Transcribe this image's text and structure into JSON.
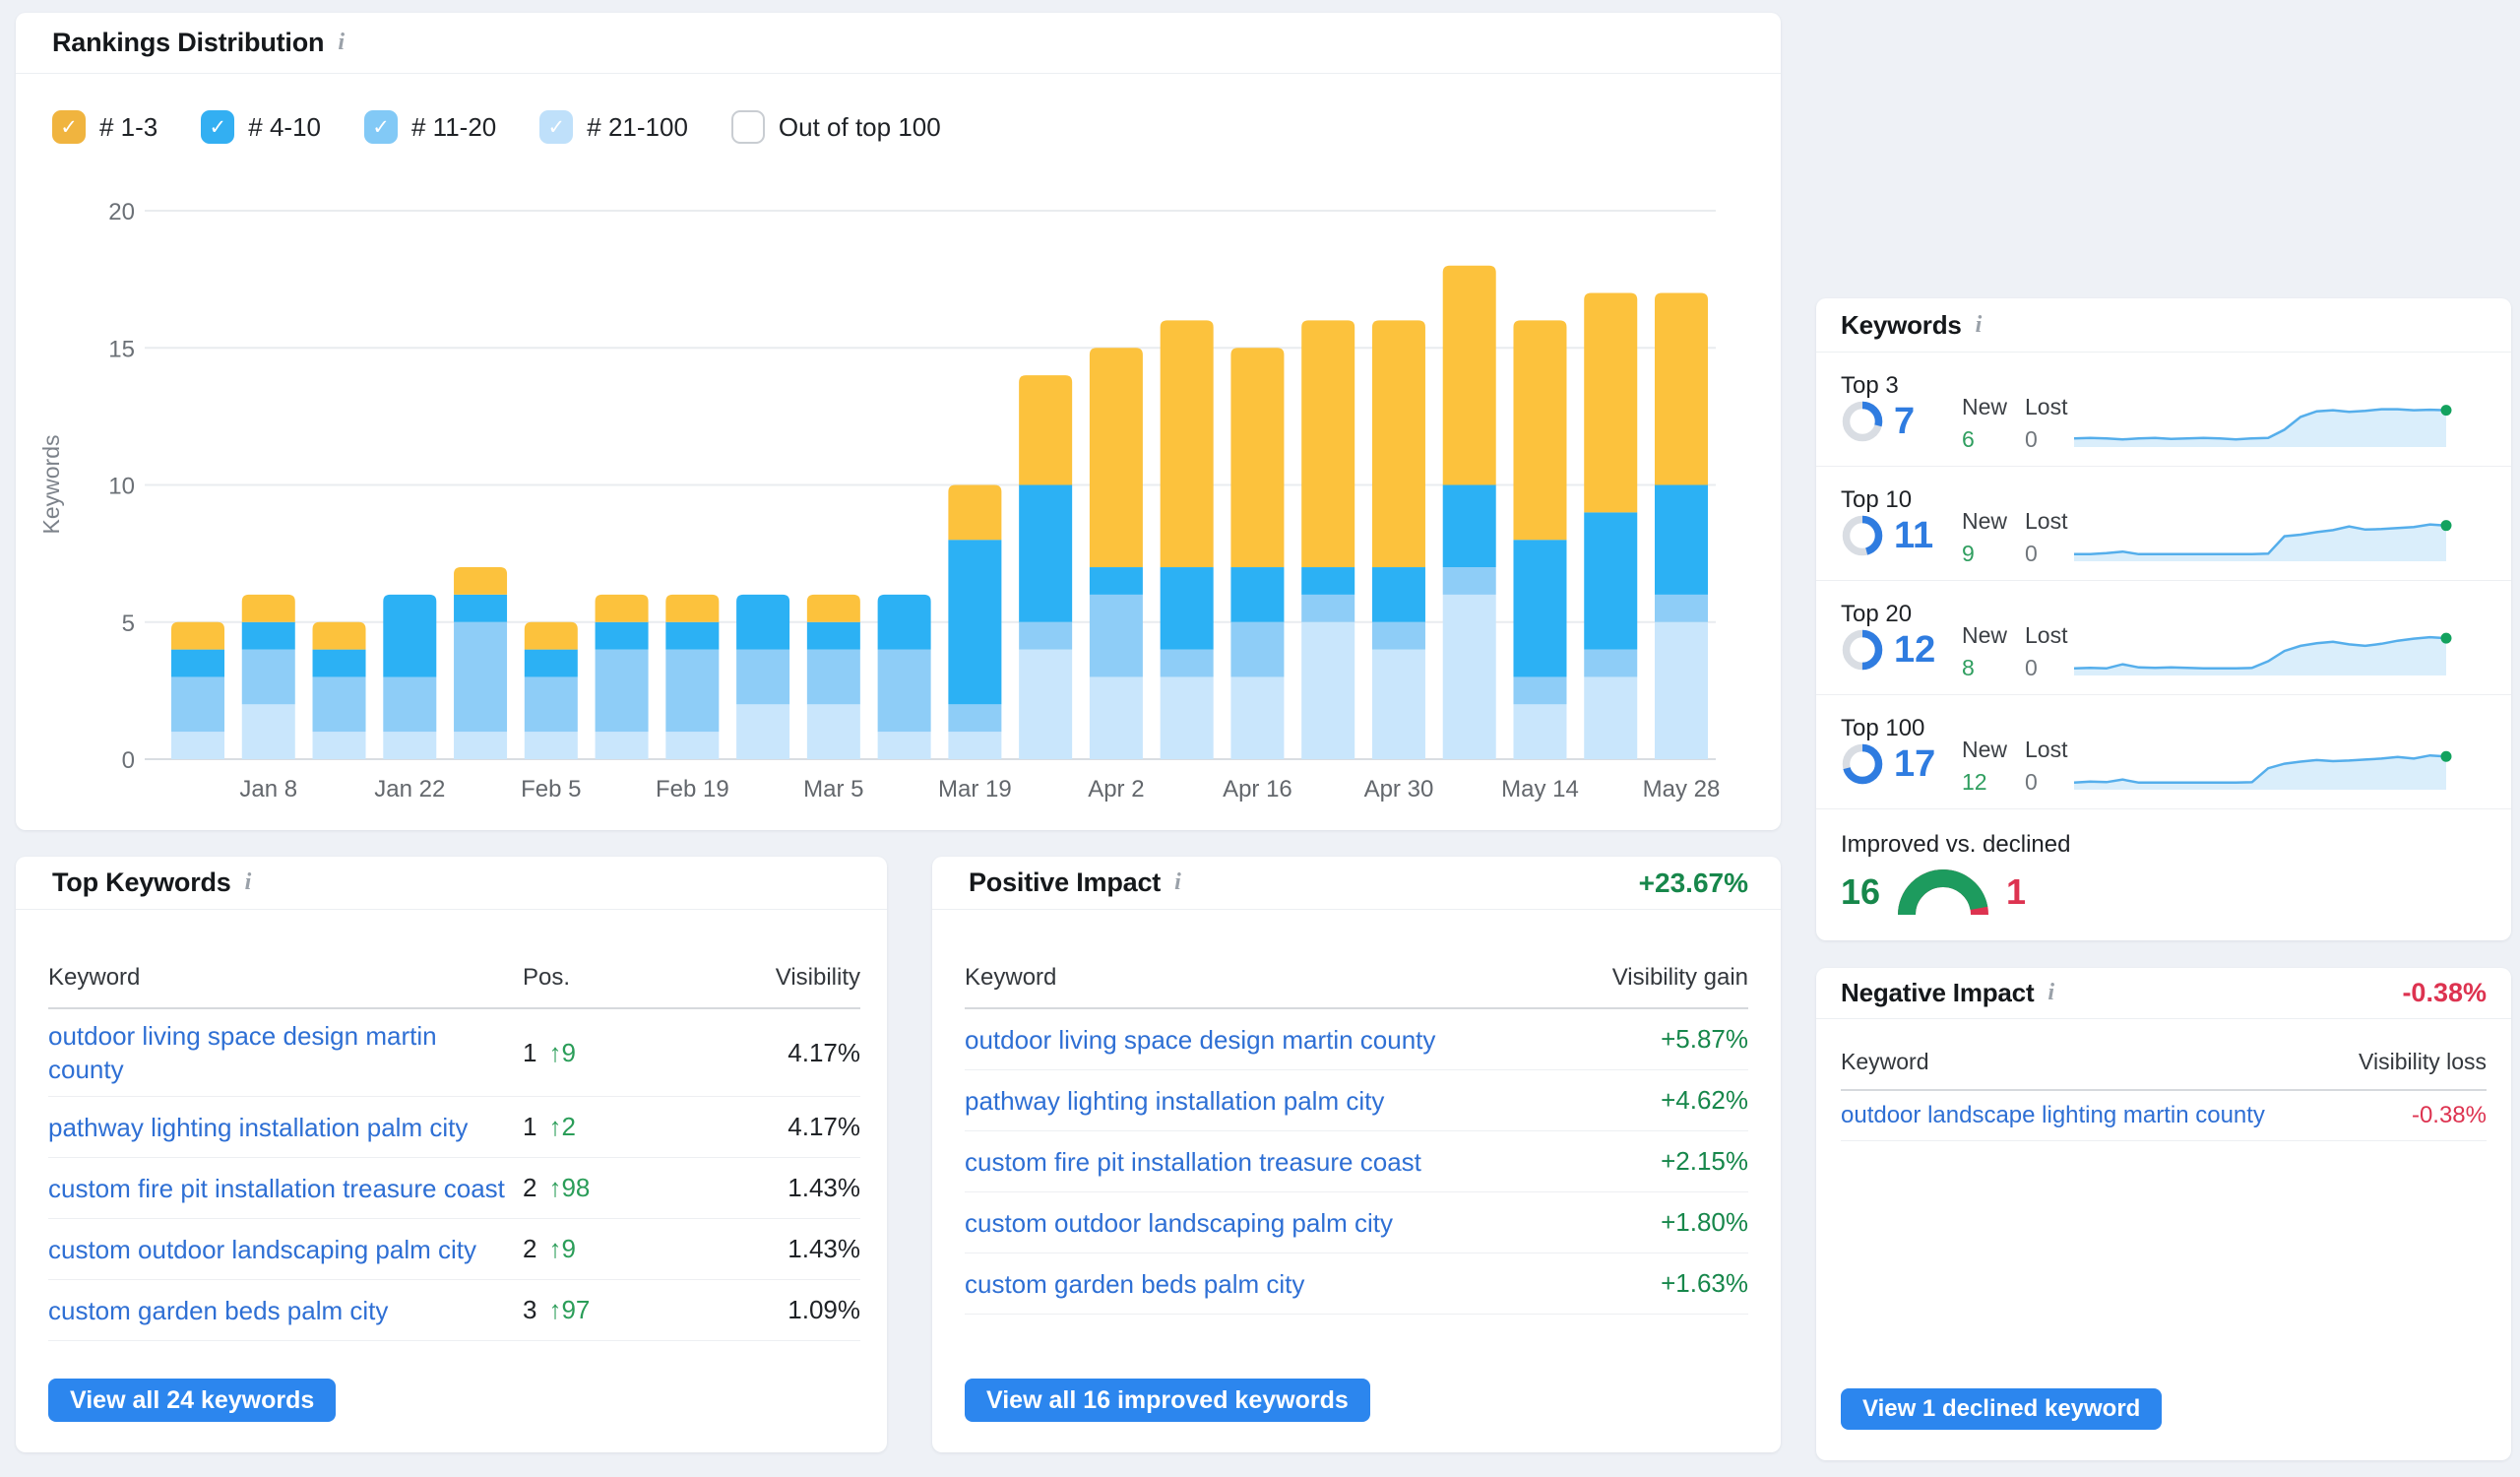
{
  "page_bg": "#eef1f6",
  "rankings": {
    "title": "Rankings Distribution",
    "legend": [
      {
        "label": "# 1-3",
        "color": "#f0b43f",
        "checked": true
      },
      {
        "label": "# 4-10",
        "color": "#33aff2",
        "checked": true
      },
      {
        "label": "# 11-20",
        "color": "#82c9f6",
        "checked": true
      },
      {
        "label": "# 21-100",
        "color": "#bfe0fa",
        "checked": true
      },
      {
        "label": "Out of top 100",
        "color": "",
        "checked": false
      }
    ],
    "chart_data": {
      "type": "bar",
      "stacked": true,
      "ylabel": "Keywords",
      "ylim": [
        0,
        20
      ],
      "yticks": [
        0,
        5,
        10,
        15,
        20
      ],
      "x_tick_labels": [
        "Jan 8",
        "Jan 22",
        "Feb 5",
        "Feb 19",
        "Mar 5",
        "Mar 19",
        "Apr 2",
        "Apr 16",
        "Apr 30",
        "May 14",
        "May 28"
      ],
      "x_tick_start_index": 1,
      "x_tick_every": 2,
      "grid": true,
      "series": [
        {
          "name": "# 21-100",
          "color": "#c9e6fc",
          "values": [
            1,
            2,
            1,
            1,
            1,
            1,
            1,
            1,
            2,
            2,
            1,
            1,
            4,
            3,
            3,
            3,
            5,
            4,
            6,
            2,
            3,
            5
          ]
        },
        {
          "name": "# 11-20",
          "color": "#8ecdf7",
          "values": [
            2,
            2,
            2,
            2,
            4,
            2,
            3,
            3,
            2,
            2,
            3,
            1,
            1,
            3,
            1,
            2,
            1,
            1,
            1,
            1,
            1,
            1
          ]
        },
        {
          "name": "# 4-10",
          "color": "#2cb1f4",
          "values": [
            1,
            1,
            1,
            3,
            1,
            1,
            1,
            1,
            2,
            1,
            2,
            6,
            5,
            1,
            3,
            2,
            1,
            2,
            3,
            5,
            5,
            4
          ]
        },
        {
          "name": "# 1-3",
          "color": "#fcc23d",
          "values": [
            1,
            1,
            1,
            0,
            1,
            1,
            1,
            1,
            0,
            1,
            0,
            2,
            4,
            8,
            9,
            8,
            9,
            9,
            8,
            8,
            8,
            7
          ]
        }
      ]
    }
  },
  "top_keywords": {
    "title": "Top Keywords",
    "columns": [
      "Keyword",
      "Pos.",
      "Visibility"
    ],
    "rows": [
      {
        "keyword": "outdoor living space design martin county",
        "pos": "1",
        "delta": "9",
        "visibility": "4.17%"
      },
      {
        "keyword": "pathway lighting installation palm city",
        "pos": "1",
        "delta": "2",
        "visibility": "4.17%"
      },
      {
        "keyword": "custom fire pit installation treasure coast",
        "pos": "2",
        "delta": "98",
        "visibility": "1.43%"
      },
      {
        "keyword": "custom outdoor landscaping palm city",
        "pos": "2",
        "delta": "9",
        "visibility": "1.43%"
      },
      {
        "keyword": "custom garden beds palm city",
        "pos": "3",
        "delta": "97",
        "visibility": "1.09%"
      }
    ],
    "button": "View all 24 keywords"
  },
  "positive_impact": {
    "title": "Positive Impact",
    "total": "+23.67%",
    "columns": [
      "Keyword",
      "Visibility gain"
    ],
    "rows": [
      {
        "keyword": "outdoor living space design martin county",
        "gain": "+5.87%"
      },
      {
        "keyword": "pathway lighting installation palm city",
        "gain": "+4.62%"
      },
      {
        "keyword": "custom fire pit installation treasure coast",
        "gain": "+2.15%"
      },
      {
        "keyword": "custom outdoor landscaping palm city",
        "gain": "+1.80%"
      },
      {
        "keyword": "custom garden beds palm city",
        "gain": "+1.63%"
      }
    ],
    "button": "View all 16 improved keywords"
  },
  "keywords_summary": {
    "title": "Keywords",
    "total_keywords": 24,
    "new_header": "New",
    "lost_header": "Lost",
    "rows": [
      {
        "label": "Top 3",
        "count": 7,
        "new": 6,
        "lost": 0,
        "spark": [
          0.13,
          0.14,
          0.13,
          0.11,
          0.13,
          0.14,
          0.12,
          0.13,
          0.14,
          0.13,
          0.11,
          0.13,
          0.14,
          0.3,
          0.55,
          0.66,
          0.68,
          0.65,
          0.67,
          0.7,
          0.7,
          0.68,
          0.69,
          0.68
        ]
      },
      {
        "label": "Top 10",
        "count": 11,
        "new": 9,
        "lost": 0,
        "spark": [
          0.1,
          0.1,
          0.12,
          0.15,
          0.1,
          0.1,
          0.1,
          0.1,
          0.1,
          0.1,
          0.1,
          0.1,
          0.11,
          0.45,
          0.48,
          0.53,
          0.57,
          0.64,
          0.58,
          0.59,
          0.61,
          0.63,
          0.68,
          0.66
        ]
      },
      {
        "label": "Top 20",
        "count": 12,
        "new": 8,
        "lost": 0,
        "spark": [
          0.1,
          0.11,
          0.1,
          0.18,
          0.12,
          0.11,
          0.12,
          0.11,
          0.1,
          0.1,
          0.1,
          0.11,
          0.24,
          0.44,
          0.54,
          0.59,
          0.62,
          0.57,
          0.54,
          0.58,
          0.64,
          0.68,
          0.71,
          0.69
        ]
      },
      {
        "label": "Top 100",
        "count": 17,
        "new": 12,
        "lost": 0,
        "spark": [
          0.1,
          0.12,
          0.11,
          0.16,
          0.1,
          0.1,
          0.1,
          0.1,
          0.1,
          0.1,
          0.1,
          0.11,
          0.38,
          0.47,
          0.51,
          0.54,
          0.52,
          0.53,
          0.55,
          0.57,
          0.6,
          0.57,
          0.63,
          0.61
        ]
      }
    ],
    "improved_declined": {
      "label": "Improved vs. declined",
      "improved": 16,
      "declined": 1
    }
  },
  "negative_impact": {
    "title": "Negative Impact",
    "total": "-0.38%",
    "columns": [
      "Keyword",
      "Visibility loss"
    ],
    "rows": [
      {
        "keyword": "outdoor landscape lighting martin county",
        "loss": "-0.38%"
      }
    ],
    "button": "View 1 declined keyword"
  },
  "colors": {
    "bar_1_3": "#fcc23d",
    "bar_4_10": "#2cb1f4",
    "bar_11_20": "#8ecdf7",
    "bar_21_100": "#c9e6fc",
    "link": "#2e6fd4",
    "green": "#17874b",
    "red": "#dd3350",
    "button": "#2c86ee",
    "donut": "#2f7ce0",
    "spark_line": "#55aeeb",
    "spark_fill": "#daeefb",
    "spark_dot": "#13a25e"
  }
}
